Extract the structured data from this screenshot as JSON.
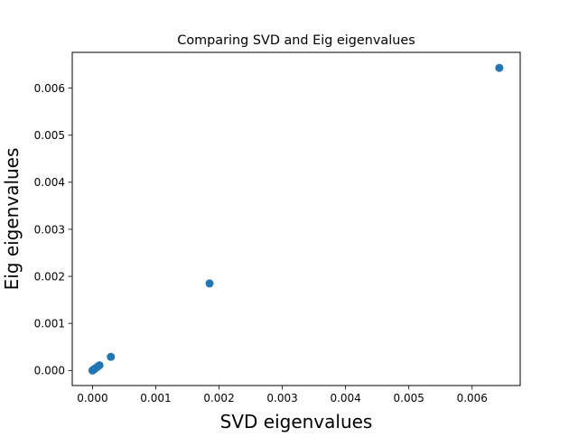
{
  "chart_data": {
    "type": "scatter",
    "title": "Comparing SVD and Eig eigenvalues",
    "xlabel": "SVD eigenvalues",
    "ylabel": "Eig eigenvalues",
    "xlim": [
      -0.00032,
      0.00676
    ],
    "ylim": [
      -0.00032,
      0.00676
    ],
    "xticks": [
      0.0,
      0.001,
      0.002,
      0.003,
      0.004,
      0.005,
      0.006
    ],
    "yticks": [
      0.0,
      0.001,
      0.002,
      0.003,
      0.004,
      0.005,
      0.006
    ],
    "xtick_labels": [
      "0.000",
      "0.001",
      "0.002",
      "0.003",
      "0.004",
      "0.005",
      "0.006"
    ],
    "ytick_labels": [
      "0.000",
      "0.001",
      "0.002",
      "0.003",
      "0.004",
      "0.005",
      "0.006"
    ],
    "grid": false,
    "legend": false,
    "marker_color": "#1f77b4",
    "points": [
      {
        "x": 0.00643,
        "y": 0.00643
      },
      {
        "x": 0.00185,
        "y": 0.00185
      },
      {
        "x": 0.00029,
        "y": 0.00029
      },
      {
        "x": 0.00011,
        "y": 0.00011
      },
      {
        "x": 8e-05,
        "y": 8e-05
      },
      {
        "x": 5e-05,
        "y": 5e-05
      },
      {
        "x": 3e-05,
        "y": 3e-05
      },
      {
        "x": 2e-05,
        "y": 2e-05
      },
      {
        "x": 1e-05,
        "y": 1e-05
      },
      {
        "x": 5e-06,
        "y": 5e-06
      },
      {
        "x": 0.0,
        "y": 0.0
      }
    ]
  }
}
